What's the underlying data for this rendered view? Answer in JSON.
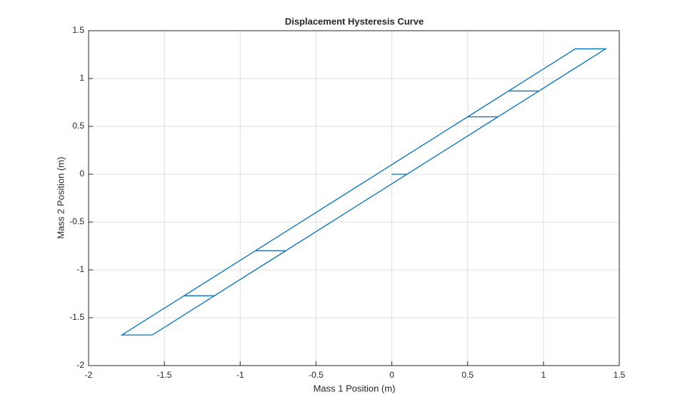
{
  "chart_data": {
    "type": "line",
    "title": "Displacement Hysteresis Curve",
    "x_label": "Mass 1 Position (m)",
    "y_label": "Mass 2 Position (m)",
    "x": [
      0,
      0.1,
      0.7,
      0.5,
      -0.9,
      -0.7,
      0.97,
      0.77,
      -1.37,
      -1.17,
      1.41,
      1.21,
      -1.78,
      -1.58,
      0.1
    ],
    "y": [
      0,
      0,
      0.6,
      0.6,
      -0.8,
      -0.8,
      0.87,
      0.87,
      -1.27,
      -1.27,
      1.31,
      1.31,
      -1.68,
      -1.68,
      0
    ],
    "color": "#0072bd",
    "xlim": [
      -2,
      1.5
    ],
    "xticks": [
      -2,
      -1.5,
      -1,
      -0.5,
      0,
      0.5,
      1,
      1.5
    ],
    "ylim": [
      -2,
      1.5
    ],
    "yticks": [
      -2,
      -1.5,
      -1,
      -0.5,
      0,
      0.5,
      1,
      1.5
    ],
    "grid": true
  }
}
